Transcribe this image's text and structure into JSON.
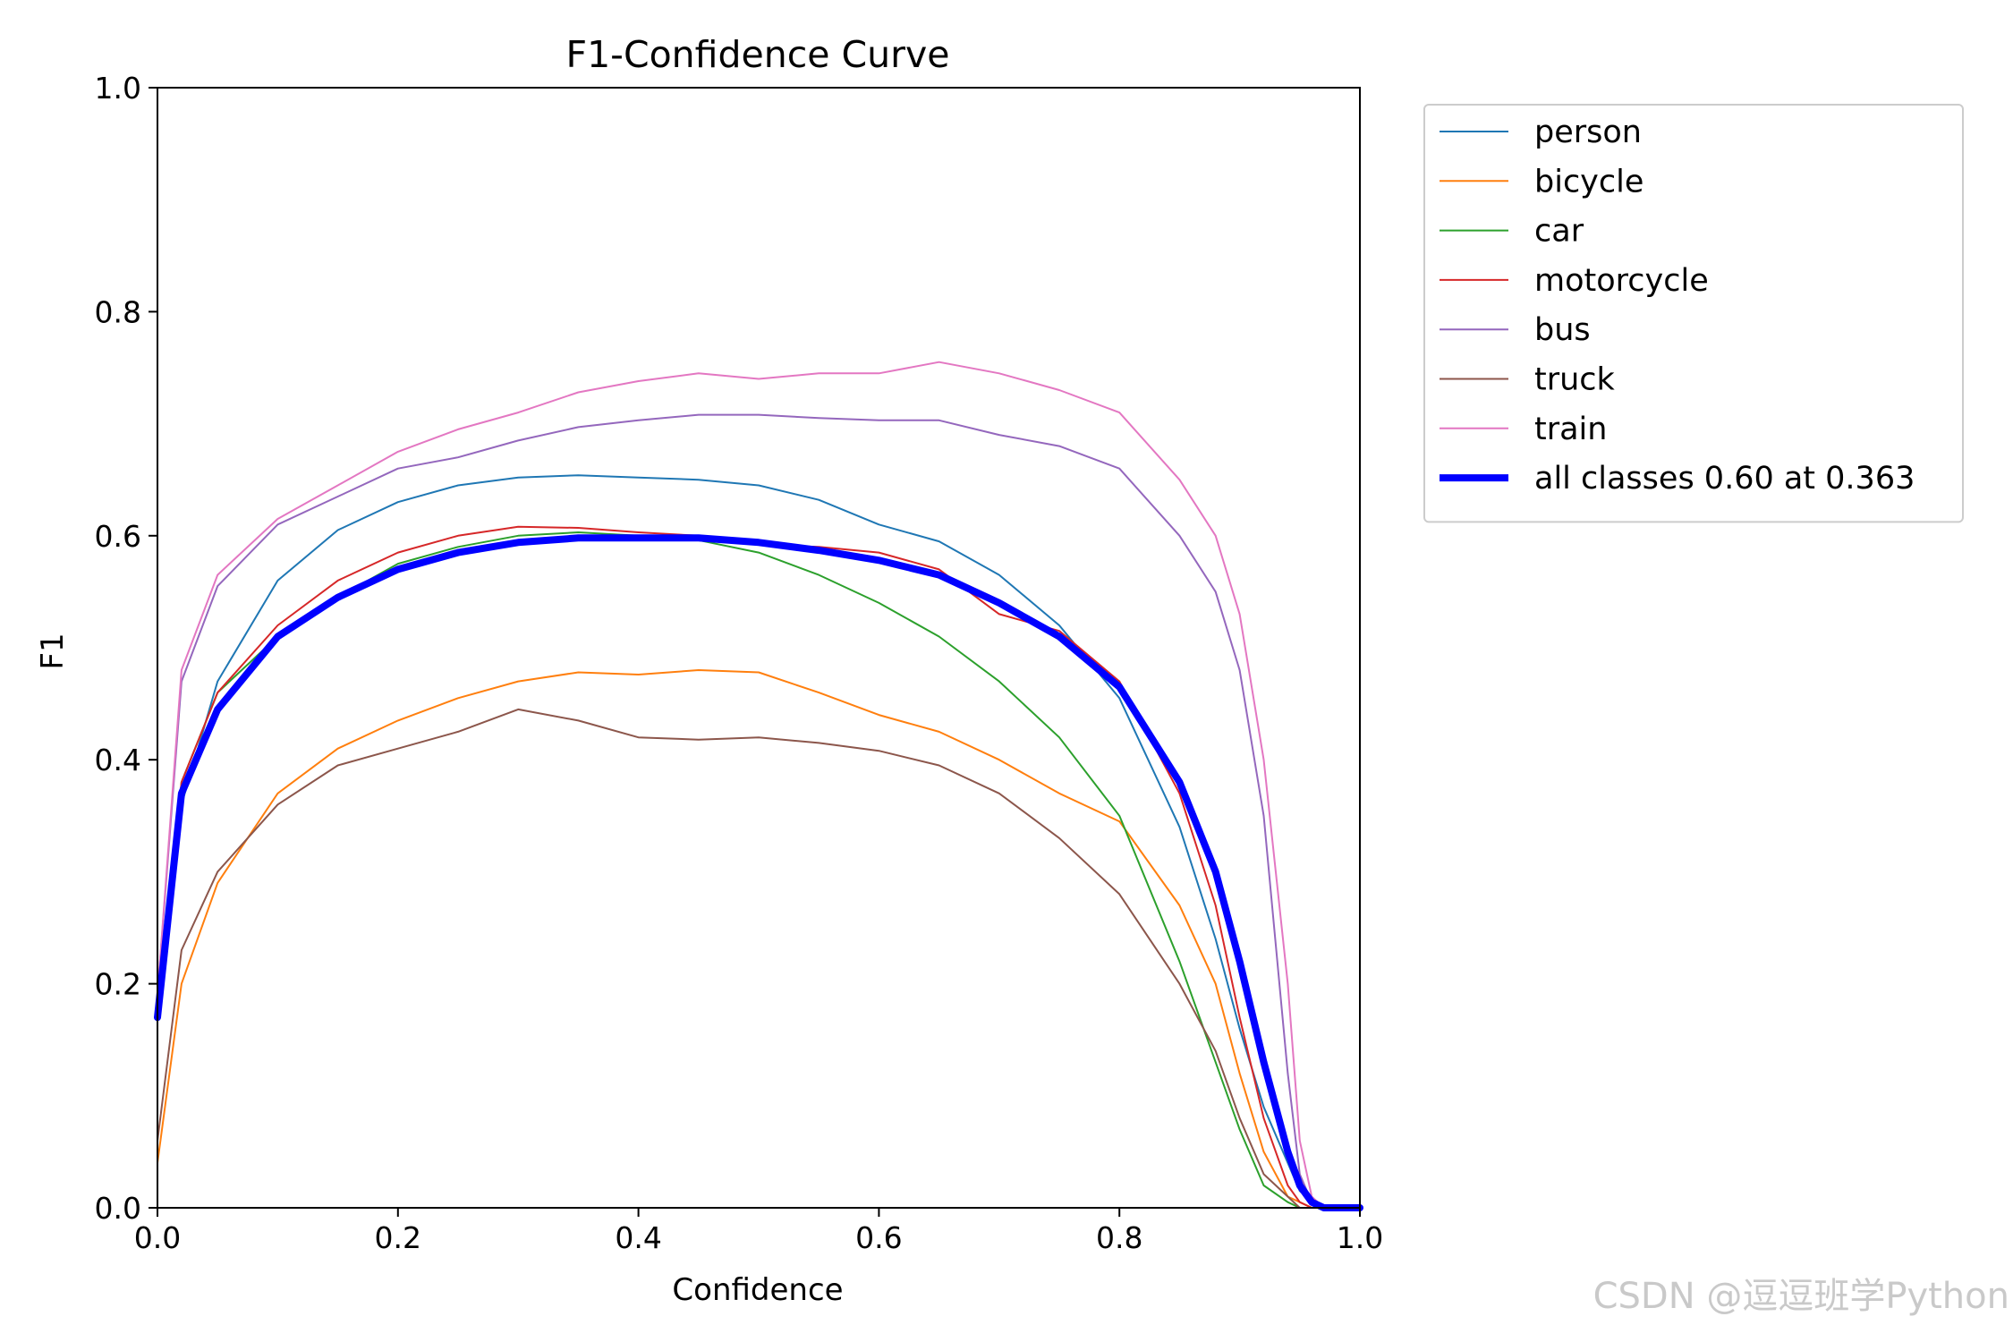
{
  "watermark": "CSDN @逗逗班学Python",
  "chart_data": {
    "type": "line",
    "title": "F1-Confidence Curve",
    "xlabel": "Confidence",
    "ylabel": "F1",
    "xlim": [
      0.0,
      1.0
    ],
    "ylim": [
      0.0,
      1.0
    ],
    "xticks": [
      "0.0",
      "0.2",
      "0.4",
      "0.6",
      "0.8",
      "1.0"
    ],
    "yticks": [
      "0.0",
      "0.2",
      "0.4",
      "0.6",
      "0.8",
      "1.0"
    ],
    "grid": false,
    "legend_position": "outside-top-right",
    "x": [
      0.0,
      0.02,
      0.05,
      0.1,
      0.15,
      0.2,
      0.25,
      0.3,
      0.35,
      0.4,
      0.45,
      0.5,
      0.55,
      0.6,
      0.65,
      0.7,
      0.75,
      0.8,
      0.85,
      0.88,
      0.9,
      0.92,
      0.94,
      0.95,
      0.96,
      0.97,
      1.0
    ],
    "series": [
      {
        "name": "person",
        "color": "#1f77b4",
        "width": 2,
        "values": [
          0.19,
          0.36,
          0.47,
          0.56,
          0.605,
          0.63,
          0.645,
          0.652,
          0.654,
          0.652,
          0.65,
          0.645,
          0.632,
          0.61,
          0.595,
          0.565,
          0.52,
          0.455,
          0.34,
          0.24,
          0.16,
          0.09,
          0.04,
          0.015,
          0.005,
          0.0,
          0.0
        ]
      },
      {
        "name": "bicycle",
        "color": "#ff7f0e",
        "width": 2,
        "values": [
          0.04,
          0.2,
          0.29,
          0.37,
          0.41,
          0.435,
          0.455,
          0.47,
          0.478,
          0.476,
          0.48,
          0.478,
          0.46,
          0.44,
          0.425,
          0.4,
          0.37,
          0.345,
          0.27,
          0.2,
          0.12,
          0.05,
          0.01,
          0.005,
          0.0,
          0.0,
          0.0
        ]
      },
      {
        "name": "car",
        "color": "#2ca02c",
        "width": 2,
        "values": [
          0.17,
          0.38,
          0.46,
          0.51,
          0.545,
          0.575,
          0.59,
          0.6,
          0.603,
          0.6,
          0.596,
          0.585,
          0.565,
          0.54,
          0.51,
          0.47,
          0.42,
          0.35,
          0.22,
          0.13,
          0.07,
          0.02,
          0.005,
          0.0,
          0.0,
          0.0,
          0.0
        ]
      },
      {
        "name": "motorcycle",
        "color": "#d62728",
        "width": 2,
        "values": [
          0.17,
          0.38,
          0.46,
          0.52,
          0.56,
          0.585,
          0.6,
          0.608,
          0.607,
          0.603,
          0.6,
          0.592,
          0.59,
          0.585,
          0.57,
          0.53,
          0.515,
          0.47,
          0.37,
          0.27,
          0.17,
          0.08,
          0.02,
          0.005,
          0.0,
          0.0,
          0.0
        ]
      },
      {
        "name": "bus",
        "color": "#9467bd",
        "width": 2,
        "values": [
          0.19,
          0.47,
          0.555,
          0.61,
          0.635,
          0.66,
          0.67,
          0.685,
          0.697,
          0.703,
          0.708,
          0.708,
          0.705,
          0.703,
          0.703,
          0.69,
          0.68,
          0.66,
          0.6,
          0.55,
          0.48,
          0.35,
          0.12,
          0.03,
          0.005,
          0.0,
          0.0
        ]
      },
      {
        "name": "train",
        "color": "#e377c2",
        "width": 2,
        "values": [
          0.19,
          0.48,
          0.565,
          0.615,
          0.645,
          0.675,
          0.695,
          0.71,
          0.728,
          0.738,
          0.745,
          0.74,
          0.745,
          0.745,
          0.755,
          0.745,
          0.73,
          0.71,
          0.65,
          0.6,
          0.53,
          0.4,
          0.2,
          0.06,
          0.01,
          0.0,
          0.0
        ]
      },
      {
        "name": "truck",
        "color": "#8c564b",
        "width": 2,
        "values": [
          0.06,
          0.23,
          0.3,
          0.36,
          0.395,
          0.41,
          0.425,
          0.445,
          0.435,
          0.42,
          0.418,
          0.42,
          0.415,
          0.408,
          0.395,
          0.37,
          0.33,
          0.28,
          0.2,
          0.14,
          0.08,
          0.03,
          0.01,
          0.0,
          0.0,
          0.0,
          0.0
        ]
      },
      {
        "name": "all classes 0.60 at 0.363",
        "color": "#0000ff",
        "width": 8,
        "values": [
          0.17,
          0.37,
          0.445,
          0.51,
          0.545,
          0.57,
          0.585,
          0.594,
          0.598,
          0.598,
          0.598,
          0.594,
          0.587,
          0.578,
          0.565,
          0.54,
          0.51,
          0.465,
          0.38,
          0.3,
          0.22,
          0.13,
          0.05,
          0.02,
          0.005,
          0.0,
          0.0
        ]
      }
    ],
    "legend_entries": [
      "person",
      "bicycle",
      "car",
      "motorcycle",
      "bus",
      "truck",
      "train",
      "all classes 0.60 at 0.363"
    ]
  }
}
